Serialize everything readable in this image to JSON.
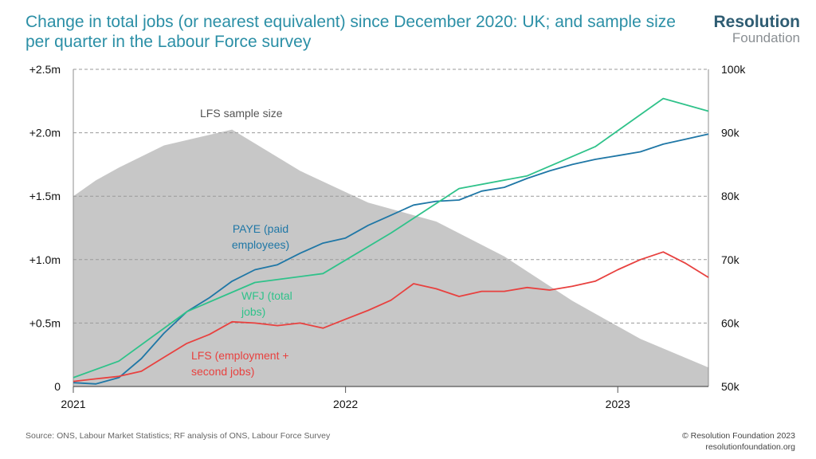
{
  "header": {
    "title": "Change in total jobs (or nearest equivalent) since December 2020: UK; and sample size per quarter in the Labour Force survey",
    "brand_line1": "Resolution",
    "brand_line2": "Foundation"
  },
  "footer": {
    "source": "Source: ONS, Labour Market Statistics; RF analysis of ONS, Labour Force Survey",
    "copyright": "© Resolution Foundation 2023",
    "website": "resolutionfoundation.org"
  },
  "chart_data": {
    "type": "line",
    "x_ticks": [
      "2021",
      "2022",
      "2023"
    ],
    "y_left": {
      "ylim": [
        0,
        2.5
      ],
      "ticks": [
        "0",
        "+0.5m",
        "+1.0m",
        "+1.5m",
        "+2.0m",
        "+2.5m"
      ]
    },
    "y_right": {
      "ylim": [
        50000,
        100000
      ],
      "ticks": [
        "50k",
        "60k",
        "70k",
        "80k",
        "90k",
        "100k"
      ]
    },
    "grid": true,
    "series": [
      {
        "name": "PAYE (paid employees)",
        "label_lines": [
          "PAYE (paid",
          "employees)"
        ],
        "color": "#1f77a6",
        "axis": "left",
        "x": [
          2021.0,
          2021.083,
          2021.167,
          2021.25,
          2021.333,
          2021.417,
          2021.5,
          2021.583,
          2021.667,
          2021.75,
          2021.833,
          2021.917,
          2022.0,
          2022.083,
          2022.167,
          2022.25,
          2022.333,
          2022.417,
          2022.5,
          2022.583,
          2022.667,
          2022.75,
          2022.833,
          2022.917,
          2023.0,
          2023.083,
          2023.167,
          2023.25,
          2023.333
        ],
        "values": [
          0.03,
          0.02,
          0.07,
          0.22,
          0.42,
          0.59,
          0.7,
          0.83,
          0.92,
          0.96,
          1.05,
          1.13,
          1.17,
          1.27,
          1.35,
          1.43,
          1.46,
          1.47,
          1.54,
          1.57,
          1.64,
          1.7,
          1.75,
          1.79,
          1.82,
          1.85,
          1.91,
          1.95,
          1.99
        ]
      },
      {
        "name": "WFJ (total jobs)",
        "label_lines": [
          "WFJ (total",
          "jobs)"
        ],
        "color": "#2fc28a",
        "axis": "left",
        "x": [
          2021.0,
          2021.167,
          2021.417,
          2021.667,
          2021.917,
          2022.167,
          2022.417,
          2022.667,
          2022.917,
          2023.167,
          2023.333
        ],
        "values": [
          0.07,
          0.2,
          0.59,
          0.82,
          0.89,
          1.21,
          1.56,
          1.66,
          1.89,
          2.27,
          2.17
        ]
      },
      {
        "name": "LFS (employment + second jobs)",
        "label_lines": [
          "LFS (employment +",
          "second jobs)"
        ],
        "color": "#e8413f",
        "axis": "left",
        "x": [
          2021.0,
          2021.083,
          2021.167,
          2021.25,
          2021.333,
          2021.417,
          2021.5,
          2021.583,
          2021.667,
          2021.75,
          2021.833,
          2021.917,
          2022.0,
          2022.083,
          2022.167,
          2022.25,
          2022.333,
          2022.417,
          2022.5,
          2022.583,
          2022.667,
          2022.75,
          2022.833,
          2022.917,
          2023.0,
          2023.083,
          2023.167,
          2023.25,
          2023.333
        ],
        "values": [
          0.04,
          0.06,
          0.08,
          0.12,
          0.23,
          0.34,
          0.41,
          0.51,
          0.5,
          0.48,
          0.5,
          0.46,
          0.53,
          0.6,
          0.68,
          0.81,
          0.77,
          0.71,
          0.75,
          0.75,
          0.78,
          0.76,
          0.79,
          0.83,
          0.92,
          1.0,
          1.06,
          0.97,
          0.86
        ]
      }
    ],
    "area": {
      "name": "LFS sample size",
      "label": "LFS sample size",
      "color": "#c7c7c7",
      "axis": "right",
      "x": [
        2021.0,
        2021.083,
        2021.167,
        2021.333,
        2021.583,
        2021.833,
        2022.083,
        2022.333,
        2022.583,
        2022.833,
        2023.083,
        2023.333
      ],
      "values": [
        80000,
        82500,
        84500,
        88000,
        90500,
        84000,
        79000,
        76000,
        70500,
        63500,
        57500,
        53000
      ]
    }
  }
}
